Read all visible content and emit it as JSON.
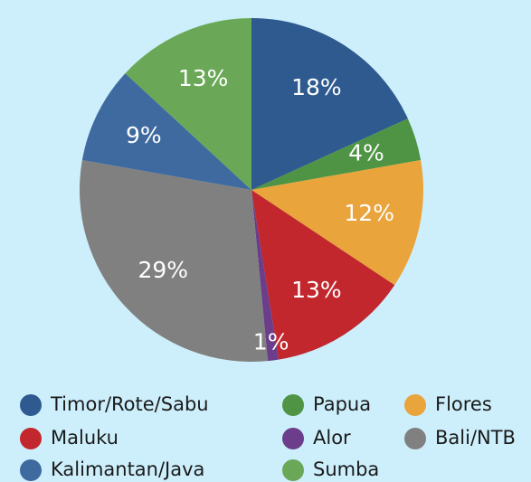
{
  "chart_data": {
    "type": "pie",
    "categories": [
      "Timor/Rote/Sabu",
      "Papua",
      "Flores",
      "Maluku",
      "Alor",
      "Bali/NTB",
      "Kalimantan/Java",
      "Sumba"
    ],
    "values": [
      18,
      4,
      12,
      13,
      1,
      29,
      9,
      13
    ],
    "value_labels": [
      "18%",
      "4%",
      "12%",
      "13%",
      "1%",
      "29%",
      "9%",
      "13%"
    ],
    "colors": [
      "#2e5a8f",
      "#4f9444",
      "#e9a43c",
      "#c1272d",
      "#6b3d8a",
      "#808080",
      "#3f6aa0",
      "#6aa857"
    ],
    "legend": "bottom"
  }
}
